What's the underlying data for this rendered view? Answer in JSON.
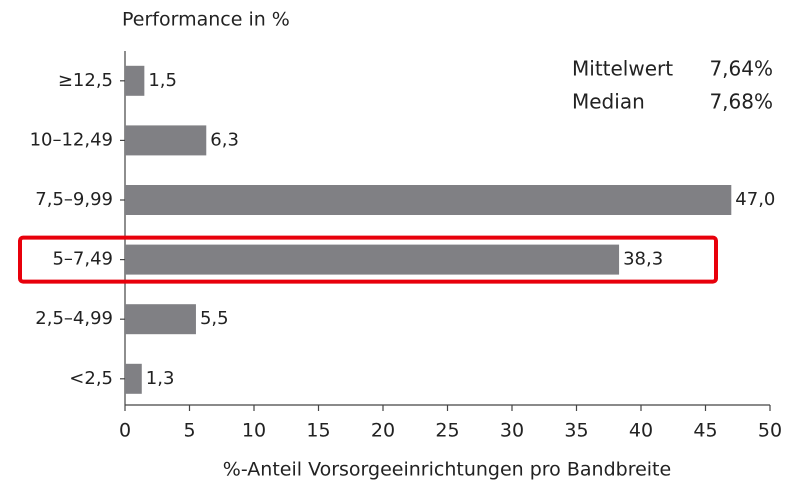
{
  "chart_data": {
    "type": "hbar",
    "title": "Performance in %",
    "x_label": "%-Anteil Vorsorgeeinrichtungen pro Bandbreite",
    "categories": [
      "≥12,5",
      "10–12,49",
      "7,5–9,99",
      "5–7,49",
      "2,5–4,99",
      "<2,5"
    ],
    "values": [
      1.5,
      6.3,
      47.0,
      38.3,
      5.5,
      1.3
    ],
    "value_labels": [
      "1,5",
      "6,3",
      "47,0",
      "38,3",
      "5,5",
      "1,3"
    ],
    "color": "#808084",
    "xlim": [
      0,
      50
    ],
    "xticks": [
      0,
      5,
      10,
      15,
      20,
      25,
      30,
      35,
      40,
      45,
      50
    ],
    "highlight": 3,
    "highlight_color": "#e8000b",
    "annotations": [
      {
        "text": "Mittelwert",
        "value": "7,64%"
      },
      {
        "text": "Median",
        "value": "7,68%"
      }
    ]
  }
}
